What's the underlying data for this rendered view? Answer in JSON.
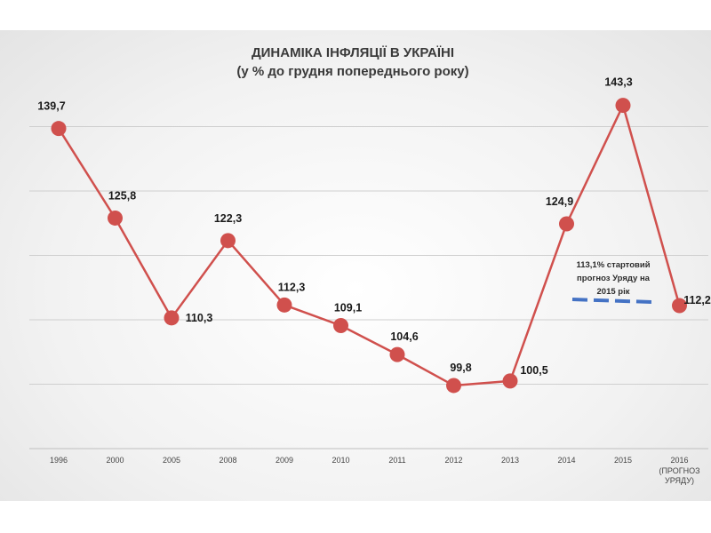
{
  "chart_data": {
    "type": "line",
    "title": "ДИНАМІКА ІНФЛЯЦІЇ В УКРАЇНІ",
    "subtitle": "(у % до грудня попереднього року)",
    "categories": [
      "1996",
      "2000",
      "2005",
      "2008",
      "2009",
      "2010",
      "2011",
      "2012",
      "2013",
      "2014",
      "2015",
      "2016"
    ],
    "category_sublabels": {
      "2016": [
        "(ПРОГНОЗ",
        "УРЯДУ)"
      ]
    },
    "values": [
      139.7,
      125.8,
      110.3,
      122.3,
      112.3,
      109.1,
      104.6,
      99.8,
      100.5,
      124.9,
      143.3,
      112.2
    ],
    "data_labels": [
      "139,7",
      "125,8",
      "110,3",
      "122,3",
      "112,3",
      "109,1",
      "104,6",
      "99,8",
      "100,5",
      "124,9",
      "143,3",
      "112,2"
    ],
    "ylim": [
      90,
      150
    ],
    "grid": true,
    "line_color": "#d0504d",
    "annotation": {
      "lines": [
        "113,1% стартовий",
        "прогноз Уряду на",
        "2015 рік"
      ],
      "value": 113.1,
      "color": "#4472c4"
    }
  }
}
